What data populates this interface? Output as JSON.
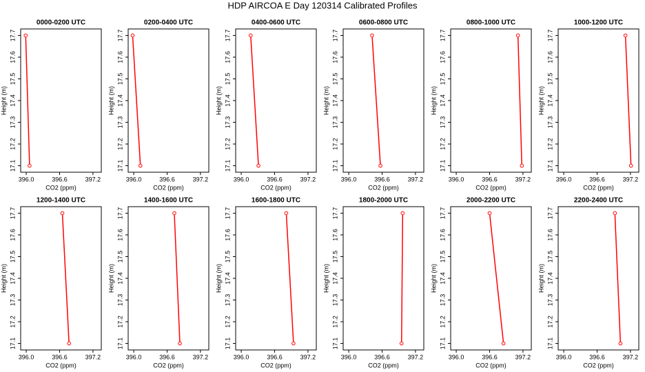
{
  "title": "HDP AIRCOA E  Day 120314  Calibrated Profiles",
  "chart_data": [
    {
      "type": "line",
      "title": "0000-0200 UTC",
      "xlabel": "CO2 (ppm)",
      "ylabel": "Height (m)",
      "xlim": [
        395.9,
        397.35
      ],
      "ylim": [
        17.07,
        17.73
      ],
      "xticks": [
        {
          "value": 396,
          "label": "396.0"
        },
        {
          "value": 396.6,
          "label": "396.6"
        },
        {
          "value": 397.2,
          "label": "397.2"
        }
      ],
      "yticks": [
        17.1,
        17.2,
        17.3,
        17.4,
        17.5,
        17.6,
        17.7
      ],
      "series": [
        {
          "color": "#ff0000",
          "x": [
            395.99,
            396.06
          ],
          "values": [
            17.7,
            17.1
          ]
        }
      ]
    },
    {
      "type": "line",
      "title": "0200-0400 UTC",
      "xlabel": "CO2 (ppm)",
      "ylabel": "Height (m)",
      "xlim": [
        395.9,
        397.35
      ],
      "ylim": [
        17.07,
        17.73
      ],
      "xticks": [
        {
          "value": 396,
          "label": "396.0"
        },
        {
          "value": 396.6,
          "label": "396.6"
        },
        {
          "value": 397.2,
          "label": "397.2"
        }
      ],
      "yticks": [
        17.1,
        17.2,
        17.3,
        17.4,
        17.5,
        17.6,
        17.7
      ],
      "series": [
        {
          "color": "#ff0000",
          "x": [
            395.98,
            396.12
          ],
          "values": [
            17.7,
            17.1
          ]
        }
      ]
    },
    {
      "type": "line",
      "title": "0400-0600 UTC",
      "xlabel": "CO2 (ppm)",
      "ylabel": "Height (m)",
      "xlim": [
        395.9,
        397.35
      ],
      "ylim": [
        17.07,
        17.73
      ],
      "xticks": [
        {
          "value": 396,
          "label": "396.0"
        },
        {
          "value": 396.6,
          "label": "396.6"
        },
        {
          "value": 397.2,
          "label": "397.2"
        }
      ],
      "yticks": [
        17.1,
        17.2,
        17.3,
        17.4,
        17.5,
        17.6,
        17.7
      ],
      "series": [
        {
          "color": "#ff0000",
          "x": [
            396.17,
            396.31
          ],
          "values": [
            17.7,
            17.1
          ]
        }
      ]
    },
    {
      "type": "line",
      "title": "0600-0800 UTC",
      "xlabel": "CO2 (ppm)",
      "ylabel": "Height (m)",
      "xlim": [
        395.9,
        397.35
      ],
      "ylim": [
        17.07,
        17.73
      ],
      "xticks": [
        {
          "value": 396,
          "label": "396.0"
        },
        {
          "value": 396.6,
          "label": "396.6"
        },
        {
          "value": 397.2,
          "label": "397.2"
        }
      ],
      "yticks": [
        17.1,
        17.2,
        17.3,
        17.4,
        17.5,
        17.6,
        17.7
      ],
      "series": [
        {
          "color": "#ff0000",
          "x": [
            396.42,
            396.57
          ],
          "values": [
            17.7,
            17.1
          ]
        }
      ]
    },
    {
      "type": "line",
      "title": "0800-1000 UTC",
      "xlabel": "CO2 (ppm)",
      "ylabel": "Height (m)",
      "xlim": [
        395.9,
        397.35
      ],
      "ylim": [
        17.07,
        17.73
      ],
      "xticks": [
        {
          "value": 396,
          "label": "396.0"
        },
        {
          "value": 396.6,
          "label": "396.6"
        },
        {
          "value": 397.2,
          "label": "397.2"
        }
      ],
      "yticks": [
        17.1,
        17.2,
        17.3,
        17.4,
        17.5,
        17.6,
        17.7
      ],
      "series": [
        {
          "color": "#ff0000",
          "x": [
            397.11,
            397.18
          ],
          "values": [
            17.7,
            17.1
          ]
        }
      ]
    },
    {
      "type": "line",
      "title": "1000-1200 UTC",
      "xlabel": "CO2 (ppm)",
      "ylabel": "Height (m)",
      "xlim": [
        395.9,
        397.35
      ],
      "ylim": [
        17.07,
        17.73
      ],
      "xticks": [
        {
          "value": 396,
          "label": "396.0"
        },
        {
          "value": 396.6,
          "label": "396.6"
        },
        {
          "value": 397.2,
          "label": "397.2"
        }
      ],
      "yticks": [
        17.1,
        17.2,
        17.3,
        17.4,
        17.5,
        17.6,
        17.7
      ],
      "series": [
        {
          "color": "#ff0000",
          "x": [
            397.11,
            397.21
          ],
          "values": [
            17.7,
            17.1
          ]
        }
      ]
    },
    {
      "type": "line",
      "title": "1200-1400 UTC",
      "xlabel": "CO2 (ppm)",
      "ylabel": "Height (m)",
      "xlim": [
        395.9,
        397.35
      ],
      "ylim": [
        17.07,
        17.73
      ],
      "xticks": [
        {
          "value": 396,
          "label": "396.0"
        },
        {
          "value": 396.6,
          "label": "396.6"
        },
        {
          "value": 397.2,
          "label": "397.2"
        }
      ],
      "yticks": [
        17.1,
        17.2,
        17.3,
        17.4,
        17.5,
        17.6,
        17.7
      ],
      "series": [
        {
          "color": "#ff0000",
          "x": [
            396.65,
            396.77
          ],
          "values": [
            17.7,
            17.1
          ]
        }
      ]
    },
    {
      "type": "line",
      "title": "1400-1600 UTC",
      "xlabel": "CO2 (ppm)",
      "ylabel": "Height (m)",
      "xlim": [
        395.9,
        397.35
      ],
      "ylim": [
        17.07,
        17.73
      ],
      "xticks": [
        {
          "value": 396,
          "label": "396.0"
        },
        {
          "value": 396.6,
          "label": "396.6"
        },
        {
          "value": 397.2,
          "label": "397.2"
        }
      ],
      "yticks": [
        17.1,
        17.2,
        17.3,
        17.4,
        17.5,
        17.6,
        17.7
      ],
      "series": [
        {
          "color": "#ff0000",
          "x": [
            396.73,
            396.83
          ],
          "values": [
            17.7,
            17.1
          ]
        }
      ]
    },
    {
      "type": "line",
      "title": "1600-1800 UTC",
      "xlabel": "CO2 (ppm)",
      "ylabel": "Height (m)",
      "xlim": [
        395.9,
        397.35
      ],
      "ylim": [
        17.07,
        17.73
      ],
      "xticks": [
        {
          "value": 396,
          "label": "396.0"
        },
        {
          "value": 396.6,
          "label": "396.6"
        },
        {
          "value": 397.2,
          "label": "397.2"
        }
      ],
      "yticks": [
        17.1,
        17.2,
        17.3,
        17.4,
        17.5,
        17.6,
        17.7
      ],
      "series": [
        {
          "color": "#ff0000",
          "x": [
            396.81,
            396.94
          ],
          "values": [
            17.7,
            17.1
          ]
        }
      ]
    },
    {
      "type": "line",
      "title": "1800-2000 UTC",
      "xlabel": "CO2 (ppm)",
      "ylabel": "Height (m)",
      "xlim": [
        395.9,
        397.35
      ],
      "ylim": [
        17.07,
        17.73
      ],
      "xticks": [
        {
          "value": 396,
          "label": "396.0"
        },
        {
          "value": 396.6,
          "label": "396.6"
        },
        {
          "value": 397.2,
          "label": "397.2"
        }
      ],
      "yticks": [
        17.1,
        17.2,
        17.3,
        17.4,
        17.5,
        17.6,
        17.7
      ],
      "series": [
        {
          "color": "#ff0000",
          "x": [
            396.97,
            396.95
          ],
          "values": [
            17.7,
            17.1
          ]
        }
      ]
    },
    {
      "type": "line",
      "title": "2000-2200 UTC",
      "xlabel": "CO2 (ppm)",
      "ylabel": "Height (m)",
      "xlim": [
        395.9,
        397.35
      ],
      "ylim": [
        17.07,
        17.73
      ],
      "xticks": [
        {
          "value": 396,
          "label": "396.0"
        },
        {
          "value": 396.6,
          "label": "396.6"
        },
        {
          "value": 397.2,
          "label": "397.2"
        }
      ],
      "yticks": [
        17.1,
        17.2,
        17.3,
        17.4,
        17.5,
        17.6,
        17.7
      ],
      "series": [
        {
          "color": "#ff0000",
          "x": [
            396.6,
            396.85
          ],
          "values": [
            17.7,
            17.1
          ]
        }
      ]
    },
    {
      "type": "line",
      "title": "2200-2400 UTC",
      "xlabel": "CO2 (ppm)",
      "ylabel": "Height (m)",
      "xlim": [
        395.9,
        397.35
      ],
      "ylim": [
        17.07,
        17.73
      ],
      "xticks": [
        {
          "value": 396,
          "label": "396.0"
        },
        {
          "value": 396.6,
          "label": "396.6"
        },
        {
          "value": 397.2,
          "label": "397.2"
        }
      ],
      "yticks": [
        17.1,
        17.2,
        17.3,
        17.4,
        17.5,
        17.6,
        17.7
      ],
      "series": [
        {
          "color": "#ff0000",
          "x": [
            396.92,
            397.02
          ],
          "values": [
            17.7,
            17.1
          ]
        }
      ]
    }
  ]
}
